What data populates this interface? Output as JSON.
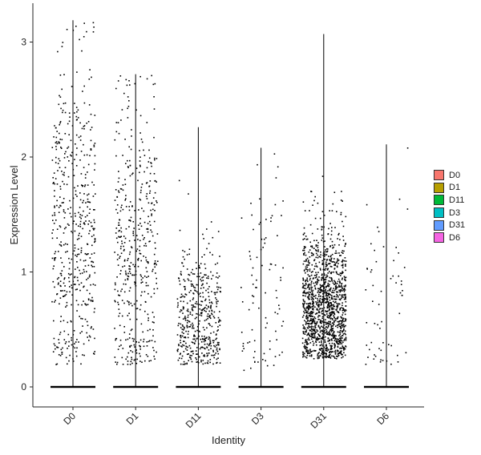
{
  "chart_data": {
    "type": "scatter",
    "subtype": "violin-jitter",
    "xlabel": "Identity",
    "ylabel": "Expression Level",
    "categories": [
      "D0",
      "D1",
      "D11",
      "D3",
      "D31",
      "D6"
    ],
    "ylim": [
      -0.17,
      3.36
    ],
    "yticks": [
      0,
      1,
      2,
      3
    ],
    "grid": false,
    "legend_position": "right",
    "series": [
      {
        "name": "D0",
        "color": "#F8766D",
        "max": 3.19,
        "n_points": 520,
        "center": 1.4,
        "spread": 0.75,
        "min_expr": 0.2
      },
      {
        "name": "D1",
        "color": "#B79F00",
        "max": 2.72,
        "n_points": 450,
        "center": 1.2,
        "spread": 0.7,
        "min_expr": 0.2
      },
      {
        "name": "D11",
        "color": "#00BA38",
        "max": 2.26,
        "n_points": 470,
        "center": 0.6,
        "spread": 0.35,
        "min_expr": 0.2
      },
      {
        "name": "D3",
        "color": "#00BFC4",
        "max": 2.08,
        "n_points": 90,
        "center": 0.9,
        "spread": 0.6,
        "min_expr": 0.15
      },
      {
        "name": "D31",
        "color": "#619CFF",
        "max": 3.07,
        "n_points": 1400,
        "center": 0.7,
        "spread": 0.35,
        "min_expr": 0.25
      },
      {
        "name": "D6",
        "color": "#F564E3",
        "max": 2.11,
        "n_points": 60,
        "center": 0.8,
        "spread": 0.5,
        "min_expr": 0.2
      }
    ]
  }
}
